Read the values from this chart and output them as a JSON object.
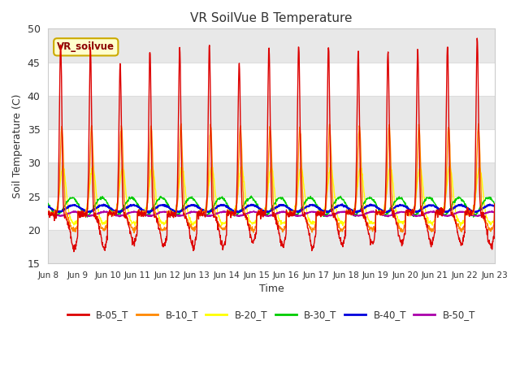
{
  "title": "VR SoilVue B Temperature",
  "xlabel": "Time",
  "ylabel": "Soil Temperature (C)",
  "ylim": [
    15,
    50
  ],
  "background_color": "#ffffff",
  "plot_bg_color": "#ffffff",
  "grid_color": "#dddddd",
  "annotation_text": "VR_soilvue",
  "annotation_bg": "#ffffcc",
  "annotation_border": "#ccaa00",
  "x_tick_labels": [
    "Jun 8",
    "Jun 9",
    "Jun 10",
    "Jun 11",
    "Jun 12",
    "Jun 13",
    "Jun 14",
    "Jun 15",
    "Jun 16",
    "Jun 17",
    "Jun 18",
    "Jun 19",
    "Jun 20",
    "Jun 21",
    "Jun 22",
    "Jun 23"
  ],
  "y_ticks": [
    15,
    20,
    25,
    30,
    35,
    40,
    45,
    50
  ],
  "band_color": "#e8e8e8",
  "series_colors": {
    "B-05_T": "#dd0000",
    "B-10_T": "#ff8800",
    "B-20_T": "#ffff00",
    "B-30_T": "#00cc00",
    "B-40_T": "#0000dd",
    "B-50_T": "#aa00aa"
  }
}
